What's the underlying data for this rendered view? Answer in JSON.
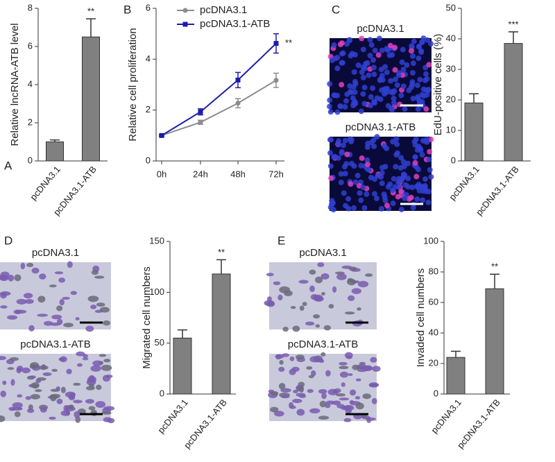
{
  "chart_data": [
    {
      "type": "bar",
      "panel": "A",
      "ylabel": "Relative lncRNA-ATB level",
      "categories": [
        "pcDNA3.1",
        "pcDNA3.1-ATB"
      ],
      "values": [
        1.0,
        6.5
      ],
      "errors": [
        0.1,
        0.95
      ],
      "annotations": [
        null,
        "**"
      ],
      "color": "#808080",
      "ylim": [
        0,
        8
      ],
      "yticks": [
        0,
        2,
        4,
        6,
        8
      ]
    },
    {
      "type": "line",
      "panel": "B",
      "ylabel": "Relative cell proliferation",
      "categories": [
        "0h",
        "24h",
        "48h",
        "72h"
      ],
      "series": [
        {
          "name": "pcDNA3.1",
          "color": "#8c8c8c",
          "values": [
            1.0,
            1.52,
            2.27,
            3.17
          ],
          "errors": [
            0.03,
            0.08,
            0.18,
            0.28
          ]
        },
        {
          "name": "pcDNA3.1-ATB",
          "color": "#1c1ca8",
          "values": [
            1.0,
            1.93,
            3.18,
            4.62
          ],
          "errors": [
            0.03,
            0.12,
            0.3,
            0.38
          ]
        }
      ],
      "annotation": "**",
      "ylim": [
        0,
        6
      ],
      "yticks": [
        0,
        2,
        4,
        6
      ]
    },
    {
      "type": "bar",
      "panel": "C",
      "ylabel": "EdU-positive cells (%)",
      "image_labels": [
        "pcDNA3.1",
        "pcDNA3.1-ATB"
      ],
      "categories": [
        "pcDNA3.1",
        "pcDNA3.1-ATB"
      ],
      "values": [
        19,
        38.5
      ],
      "errors": [
        3,
        3.8
      ],
      "annotations": [
        null,
        "***"
      ],
      "color": "#808080",
      "ylim": [
        0,
        50
      ],
      "yticks": [
        0,
        10,
        20,
        30,
        40,
        50
      ]
    },
    {
      "type": "bar",
      "panel": "D",
      "ylabel": "Migrated cell numbers",
      "image_labels": [
        "pcDNA3.1",
        "pcDNA3.1-ATB"
      ],
      "categories": [
        "pcDNA3.1",
        "pcDNA3.1-ATB"
      ],
      "values": [
        55,
        118
      ],
      "errors": [
        8,
        14
      ],
      "annotations": [
        null,
        "**"
      ],
      "color": "#808080",
      "ylim": [
        0,
        150
      ],
      "yticks": [
        0,
        50,
        100,
        150
      ]
    },
    {
      "type": "bar",
      "panel": "E",
      "ylabel": "Invaded cell numbers",
      "image_labels": [
        "pcDNA3.1",
        "pcDNA3.1-ATB"
      ],
      "categories": [
        "pcDNA3.1",
        "pcDNA3.1-ATB"
      ],
      "values": [
        24,
        69
      ],
      "errors": [
        4,
        9.5
      ],
      "annotations": [
        null,
        "**"
      ],
      "color": "#808080",
      "ylim": [
        0,
        100
      ],
      "yticks": [
        0,
        20,
        40,
        60,
        80,
        100
      ]
    }
  ]
}
